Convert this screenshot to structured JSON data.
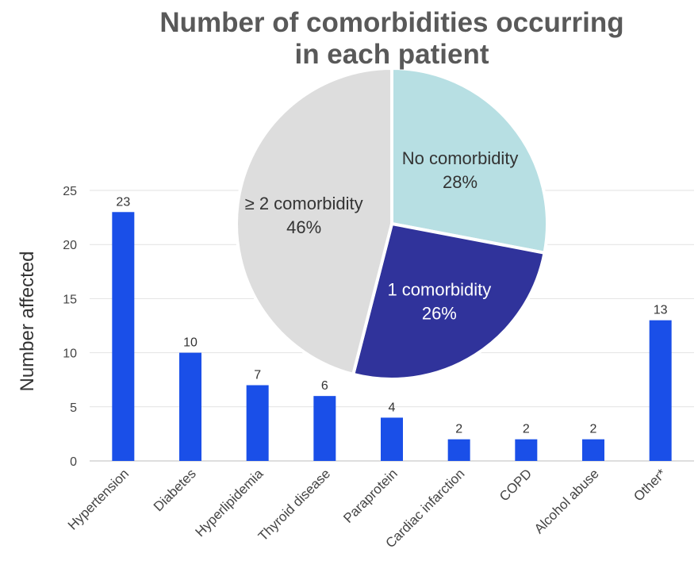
{
  "chart_data": [
    {
      "type": "bar",
      "ylabel": "Number affected",
      "ylim": [
        0,
        25
      ],
      "yticks": [
        0,
        5,
        10,
        15,
        20,
        25
      ],
      "grid": true,
      "bar_color": "#1a4fe8",
      "categories": [
        "Hypertension",
        "Diabetes",
        "Hyperlipidemia",
        "Thyroid disease",
        "Paraprotein",
        "Cardiac infarction",
        "COPD",
        "Alcohol abuse",
        "Other*"
      ],
      "values": [
        23,
        10,
        7,
        6,
        4,
        2,
        2,
        2,
        13
      ]
    },
    {
      "type": "pie",
      "title_lines": [
        "Number of comorbidities occurring",
        "in each patient"
      ],
      "slices": [
        {
          "name": "No comorbidity",
          "value": 28,
          "label": "28%",
          "color": "#b7dfe3",
          "text_color": "#333333"
        },
        {
          "name": "1 comorbidity",
          "value": 26,
          "label": "26%",
          "color": "#30339b",
          "text_color": "#ffffff"
        },
        {
          "name": "≥ 2 comorbidity",
          "value": 46,
          "label": "46%",
          "color": "#dddddd",
          "text_color": "#333333"
        }
      ]
    }
  ]
}
